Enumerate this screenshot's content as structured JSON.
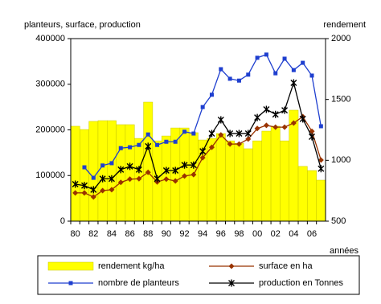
{
  "chart_data": {
    "type": "bar-line",
    "y_label": "planteurs, surface, production",
    "y2_label": "rendement",
    "x_label": "années",
    "categories": [
      "80",
      null,
      "82",
      null,
      "84",
      null,
      "86",
      null,
      "88",
      null,
      "90",
      null,
      "92",
      null,
      "94",
      null,
      "96",
      null,
      "98",
      null,
      "00",
      null,
      "02",
      null,
      "04",
      null,
      "06",
      null
    ],
    "ylim": [
      0,
      400000
    ],
    "yticks": [
      0,
      100000,
      200000,
      300000,
      400000
    ],
    "y2lim": [
      500,
      2000
    ],
    "y2ticks": [
      500,
      1000,
      1500,
      2000
    ],
    "legend": "bottom",
    "series": [
      {
        "name": "rendement kg/ha",
        "type": "bar",
        "axis": "y2",
        "color": "#ffff00",
        "values": [
          1280,
          1253,
          1320,
          1326,
          1326,
          1293,
          1293,
          1180,
          1478,
          1160,
          1200,
          1266,
          1266,
          1227,
          1167,
          1180,
          1220,
          1160,
          1140,
          1095,
          1160,
          1240,
          1280,
          1160,
          1412,
          950,
          916,
          837
        ]
      },
      {
        "name": "surface en ha",
        "type": "line",
        "marker": "diamond",
        "color": "#993300",
        "values": [
          62000,
          62000,
          53000,
          67000,
          69000,
          85000,
          92000,
          93000,
          107000,
          86000,
          92000,
          88000,
          99000,
          102000,
          139000,
          162000,
          189000,
          169000,
          169000,
          180000,
          203000,
          210000,
          206000,
          206000,
          215000,
          229000,
          197000,
          134000
        ]
      },
      {
        "name": "nombre de planteurs",
        "type": "line",
        "marker": "square",
        "color": "#1f3fcf",
        "values": [
          null,
          118000,
          95000,
          122000,
          127000,
          160000,
          162000,
          167000,
          190000,
          167000,
          174000,
          174000,
          196000,
          192000,
          250000,
          277000,
          333000,
          312000,
          308000,
          321000,
          358000,
          365000,
          324000,
          356000,
          331000,
          347000,
          319000,
          208000
        ]
      },
      {
        "name": "production en Tonnes",
        "type": "line",
        "marker": "star",
        "color": "#000000",
        "values": [
          81000,
          78000,
          69000,
          93000,
          93000,
          113000,
          120000,
          113000,
          164000,
          93000,
          111000,
          111000,
          123000,
          123000,
          153000,
          192000,
          222000,
          192000,
          192000,
          192000,
          227000,
          245000,
          234000,
          243000,
          303000,
          224000,
          185000,
          115000
        ]
      }
    ]
  }
}
